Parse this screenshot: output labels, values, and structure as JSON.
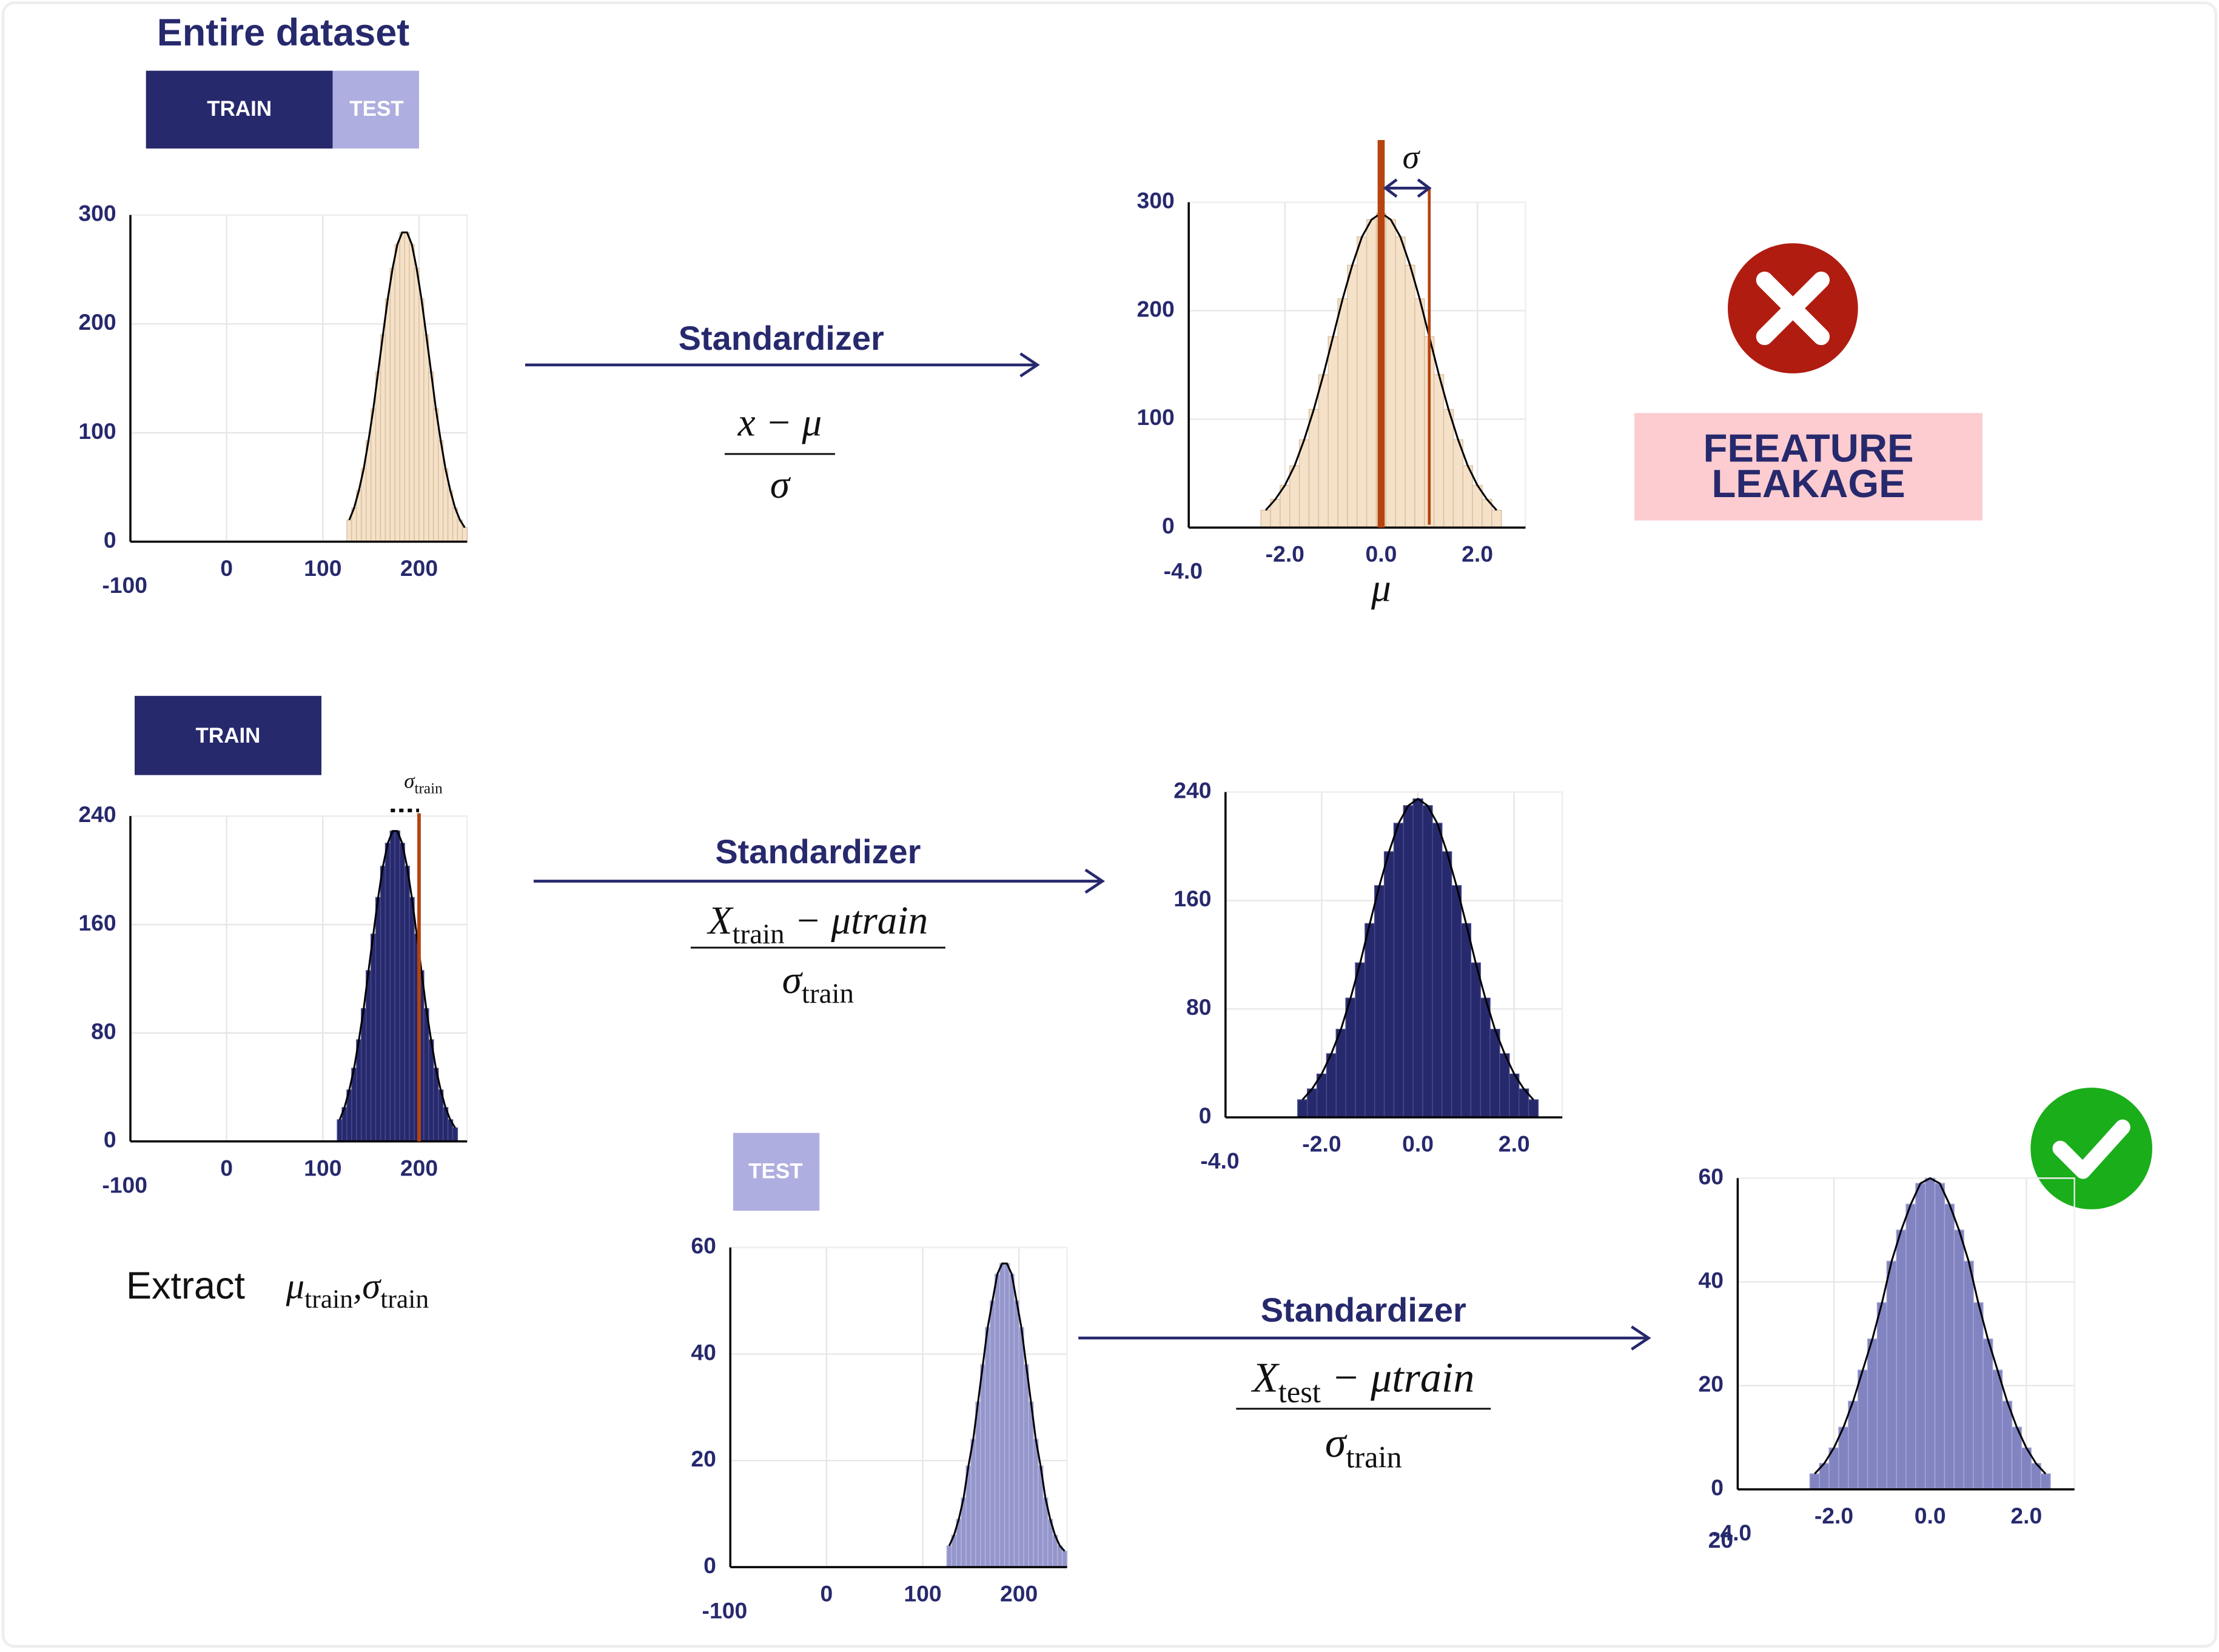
{
  "title": "Entire dataset",
  "split_bar": {
    "train": "TRAIN",
    "test": "TEST"
  },
  "train_box": "TRAIN",
  "test_box": "TEST",
  "leakage": {
    "line1": "FEEATURE",
    "line2": "LEAKAGE"
  },
  "extract": {
    "word": "Extract",
    "parts": [
      {
        "t": "μ"
      },
      {
        "t": "train",
        "sub": true
      },
      {
        "t": ","
      },
      {
        "t": "σ"
      },
      {
        "t": "train",
        "sub": true
      }
    ]
  },
  "arrows": [
    {
      "label": "Standardizer",
      "numerator": [
        {
          "t": "x − μ"
        }
      ],
      "denominator": [
        {
          "t": "σ"
        }
      ]
    },
    {
      "label": "Standardizer",
      "numerator": [
        {
          "t": "X"
        },
        {
          "t": "train",
          "sub": true
        },
        {
          "t": " − μtrain"
        }
      ],
      "denominator": [
        {
          "t": "σ"
        },
        {
          "t": "train",
          "sub": true
        }
      ]
    },
    {
      "label": "Standardizer",
      "numerator": [
        {
          "t": "X"
        },
        {
          "t": "test",
          "sub": true
        },
        {
          "t": " − μtrain"
        }
      ],
      "denominator": [
        {
          "t": "σ"
        },
        {
          "t": "train",
          "sub": true
        }
      ]
    }
  ],
  "panels": [
    {
      "type": "histogram",
      "color": "#f5e1c8",
      "edge": "#d8bf9f",
      "grid": true,
      "xlim": [
        -100,
        250
      ],
      "xticks": [
        -100,
        0,
        100,
        200
      ],
      "ylim": [
        0,
        300
      ],
      "yticks": [
        0,
        100,
        200,
        300
      ],
      "bins": [
        125,
        130,
        135,
        140,
        145,
        150,
        155,
        160,
        165,
        170,
        175,
        180,
        185,
        190,
        195,
        200,
        205,
        210,
        215,
        220,
        225,
        230,
        235,
        240,
        245,
        250
      ],
      "counts": [
        20,
        31,
        47,
        67,
        93,
        122,
        156,
        190,
        223,
        251,
        273,
        284,
        284,
        273,
        251,
        223,
        190,
        156,
        122,
        93,
        67,
        47,
        31,
        20,
        13
      ]
    },
    {
      "type": "histogram",
      "color": "#f5e1c8",
      "edge": "#d8bf9f",
      "grid": true,
      "xlim": [
        -4,
        3
      ],
      "xticks": [
        {
          "value": -4,
          "label": "-4.0"
        },
        {
          "value": -2,
          "label": "-2.0"
        },
        {
          "value": 0,
          "label": "0.0"
        },
        {
          "value": 2,
          "label": "2.0"
        }
      ],
      "ylim": [
        0,
        300
      ],
      "yticks": [
        0,
        100,
        200,
        300
      ],
      "bins": [
        -2.5,
        -2.3,
        -2.1,
        -1.9,
        -1.7,
        -1.5,
        -1.3,
        -1.1,
        -0.9,
        -0.7,
        -0.5,
        -0.3,
        -0.1,
        0.1,
        0.3,
        0.5,
        0.7,
        0.9,
        1.1,
        1.3,
        1.5,
        1.7,
        1.9,
        2.1,
        2.3,
        2.5
      ],
      "counts": [
        16,
        26,
        39,
        57,
        81,
        109,
        141,
        176,
        211,
        242,
        268,
        284,
        290,
        284,
        268,
        242,
        211,
        176,
        141,
        109,
        81,
        57,
        39,
        26,
        16
      ],
      "mu": {
        "value": 0,
        "label": "μ"
      },
      "sigma": {
        "value": 1,
        "label": "σ"
      }
    },
    {
      "type": "histogram",
      "color": "#27296d",
      "edge": "#4a4c8c",
      "grid": true,
      "xlim": [
        -100,
        250
      ],
      "xticks": [
        -100,
        0,
        100,
        200
      ],
      "ylim": [
        0,
        240
      ],
      "yticks": [
        0,
        80,
        160,
        240
      ],
      "bins": [
        115,
        120,
        125,
        130,
        135,
        140,
        145,
        150,
        155,
        160,
        165,
        170,
        175,
        180,
        185,
        190,
        195,
        200,
        205,
        210,
        215,
        220,
        225,
        230,
        235,
        240
      ],
      "counts": [
        16,
        25,
        38,
        54,
        75,
        98,
        126,
        153,
        180,
        203,
        220,
        229,
        229,
        220,
        203,
        180,
        153,
        126,
        98,
        75,
        54,
        38,
        25,
        16,
        10
      ],
      "marker": {
        "value": 200,
        "label": [
          {
            "t": "σ"
          },
          {
            "t": "train",
            "sub": true
          }
        ]
      }
    },
    {
      "type": "histogram",
      "color": "#27296d",
      "edge": "#4a4c8c",
      "grid": true,
      "xlim": [
        -4,
        3
      ],
      "xticks": [
        {
          "value": -4,
          "label": "-4.0"
        },
        {
          "value": -2,
          "label": "-2.0"
        },
        {
          "value": 0,
          "label": "0.0"
        },
        {
          "value": 2,
          "label": "2.0"
        }
      ],
      "ylim": [
        0,
        240
      ],
      "yticks": [
        0,
        80,
        160,
        240
      ],
      "bins": [
        -2.5,
        -2.3,
        -2.1,
        -1.9,
        -1.7,
        -1.5,
        -1.3,
        -1.1,
        -0.9,
        -0.7,
        -0.5,
        -0.3,
        -0.1,
        0.1,
        0.3,
        0.5,
        0.7,
        0.9,
        1.1,
        1.3,
        1.5,
        1.7,
        1.9,
        2.1,
        2.3,
        2.5
      ],
      "counts": [
        13,
        21,
        32,
        47,
        65,
        88,
        114,
        143,
        171,
        196,
        217,
        230,
        235,
        230,
        217,
        196,
        171,
        143,
        114,
        88,
        65,
        47,
        32,
        21,
        13
      ]
    },
    {
      "type": "histogram",
      "color": "#9496cc",
      "edge": "#b4b6de",
      "grid": true,
      "xlim": [
        -100,
        250
      ],
      "xticks": [
        -100,
        0,
        100,
        200
      ],
      "ylim": [
        0,
        60
      ],
      "yticks": [
        0,
        20,
        40,
        60
      ],
      "bins": [
        125,
        130,
        135,
        140,
        145,
        150,
        155,
        160,
        165,
        170,
        175,
        180,
        185,
        190,
        195,
        200,
        205,
        210,
        215,
        220,
        225,
        230,
        235,
        240,
        245,
        250
      ],
      "counts": [
        4,
        6,
        9,
        13,
        19,
        24,
        31,
        38,
        45,
        50,
        55,
        57,
        57,
        55,
        50,
        45,
        38,
        31,
        24,
        19,
        13,
        9,
        6,
        4,
        3
      ]
    },
    {
      "type": "histogram",
      "color": "#8284c2",
      "edge": "#a5a7d6",
      "grid": true,
      "xlim": [
        -4,
        3
      ],
      "xticks": [
        {
          "value": -4,
          "label": "-4.0"
        },
        {
          "value": -2,
          "label": "-2.0"
        },
        {
          "value": 0,
          "label": "0.0"
        },
        {
          "value": 2,
          "label": "2.0"
        }
      ],
      "ylim": [
        0,
        60
      ],
      "yticks": [
        0,
        20,
        40,
        60
      ],
      "stray_label": "20",
      "bins": [
        -2.5,
        -2.3,
        -2.1,
        -1.9,
        -1.7,
        -1.5,
        -1.3,
        -1.1,
        -0.9,
        -0.7,
        -0.5,
        -0.3,
        -0.1,
        0.1,
        0.3,
        0.5,
        0.7,
        0.9,
        1.1,
        1.3,
        1.5,
        1.7,
        1.9,
        2.1,
        2.3,
        2.5
      ],
      "counts": [
        3,
        5,
        8,
        12,
        17,
        23,
        29,
        36,
        44,
        50,
        55,
        59,
        60,
        59,
        55,
        50,
        44,
        36,
        29,
        23,
        17,
        12,
        8,
        5,
        3
      ]
    }
  ]
}
